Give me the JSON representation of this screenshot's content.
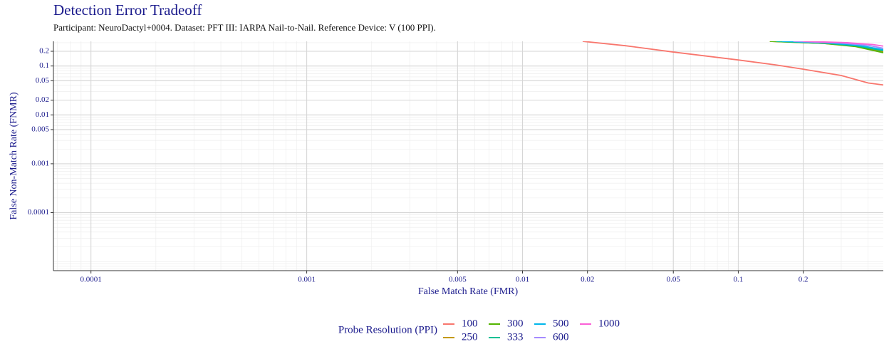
{
  "chart_data": {
    "type": "line",
    "title": "Detection Error Tradeoff",
    "subtitle": "Participant: NeuroDactyl+0004. Dataset: PFT III: IARPA Nail-to-Nail. Reference Device: V (100 PPI).",
    "x_label": "False Match Rate (FMR)",
    "y_label": "False Non-Match Rate (FNMR)",
    "x_log": true,
    "y_log": true,
    "grid": true,
    "minor_grid": true,
    "legend_position": "bottom",
    "legend_title": "Probe Resolution (PPI)",
    "xlim": [
      6.7e-05,
      0.47
    ],
    "ylim": [
      6.5e-06,
      0.32
    ],
    "xticks": [
      0.0001,
      0.001,
      0.005,
      0.01,
      0.02,
      0.05,
      0.1,
      0.2
    ],
    "yticks": [
      0.0001,
      0.001,
      0.005,
      0.01,
      0.02,
      0.05,
      0.1,
      0.2
    ],
    "series": [
      {
        "name": "100",
        "color": "#F8766D",
        "x": [
          0.019,
          0.03,
          0.05,
          0.1,
          0.15,
          0.2,
          0.3,
          0.4,
          0.47
        ],
        "values": [
          0.32,
          0.26,
          0.193,
          0.133,
          0.105,
          0.086,
          0.064,
          0.045,
          0.041
        ]
      },
      {
        "name": "250",
        "color": "#C49A00",
        "x": [
          0.14,
          0.25,
          0.35,
          0.47
        ],
        "values": [
          0.32,
          0.29,
          0.255,
          0.195
        ]
      },
      {
        "name": "300",
        "color": "#53B400",
        "x": [
          0.14,
          0.25,
          0.35,
          0.47
        ],
        "values": [
          0.32,
          0.29,
          0.25,
          0.187
        ]
      },
      {
        "name": "333",
        "color": "#00C094",
        "x": [
          0.15,
          0.25,
          0.35,
          0.47
        ],
        "values": [
          0.32,
          0.295,
          0.26,
          0.205
        ]
      },
      {
        "name": "500",
        "color": "#00B6EB",
        "x": [
          0.16,
          0.27,
          0.37,
          0.47
        ],
        "values": [
          0.32,
          0.295,
          0.26,
          0.215
        ]
      },
      {
        "name": "600",
        "color": "#A58AFF",
        "x": [
          0.18,
          0.3,
          0.4,
          0.47
        ],
        "values": [
          0.32,
          0.295,
          0.265,
          0.23
        ]
      },
      {
        "name": "1000",
        "color": "#FB61D7",
        "x": [
          0.2,
          0.32,
          0.42,
          0.47
        ],
        "values": [
          0.32,
          0.3,
          0.275,
          0.255
        ]
      }
    ]
  }
}
